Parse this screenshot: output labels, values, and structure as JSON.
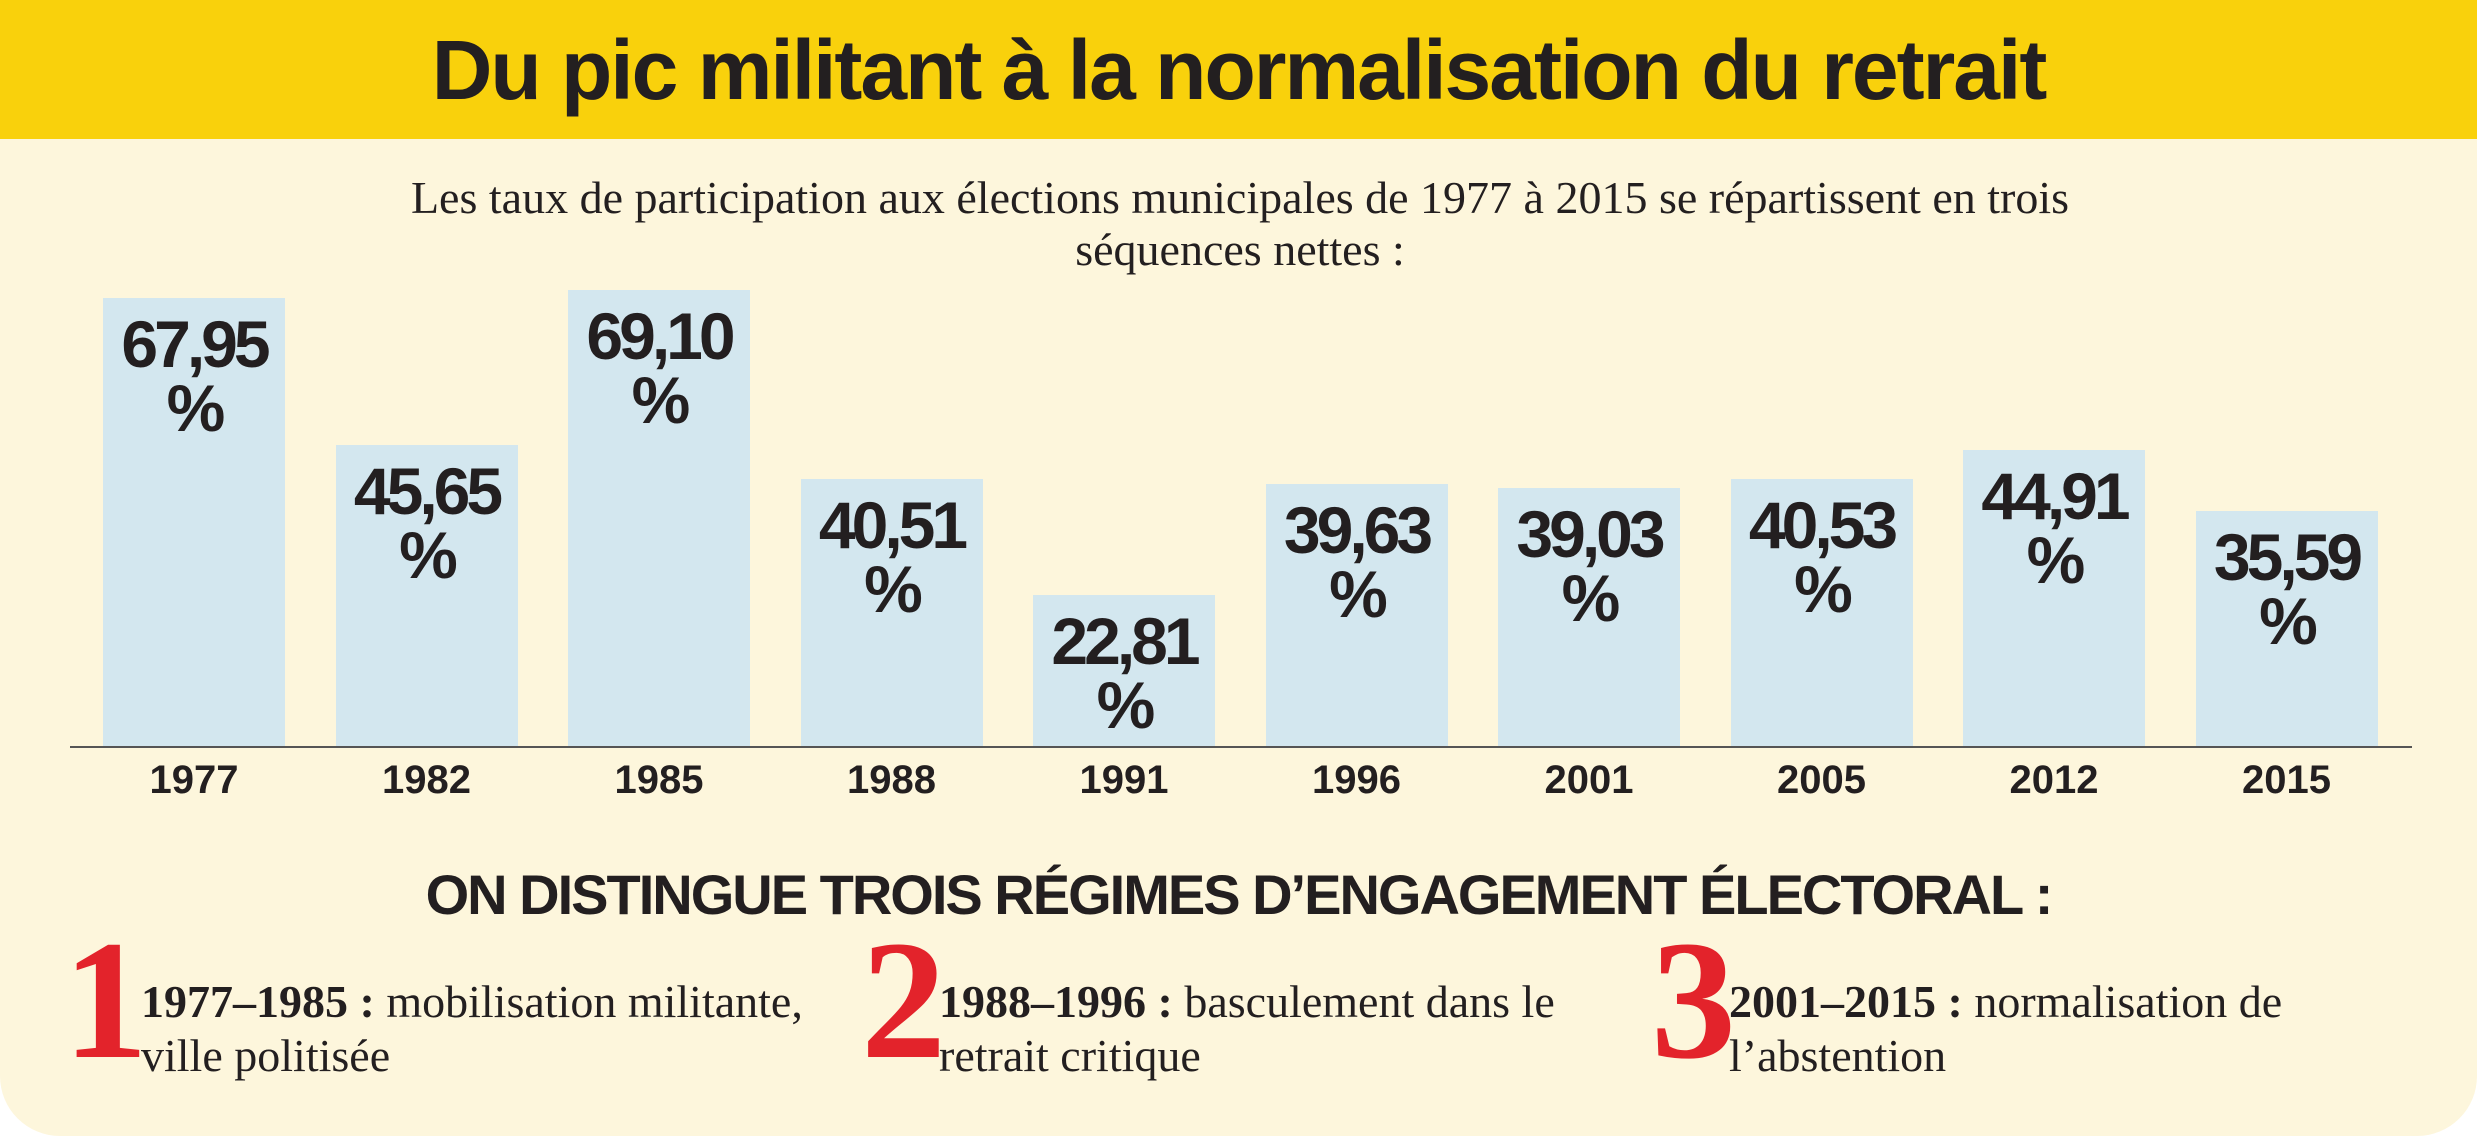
{
  "chart_data": {
    "type": "bar",
    "title": "Du pic militant à la normalisation du retrait",
    "subtitle": "Les taux de participation aux élections municipales de 1977 à 2015 se répartissent en trois séquences nettes :",
    "categories": [
      "1977",
      "1982",
      "1985",
      "1988",
      "1991",
      "1996",
      "2001",
      "2005",
      "2012",
      "2015"
    ],
    "values": [
      67.95,
      45.65,
      69.1,
      40.51,
      22.81,
      39.63,
      39.03,
      40.53,
      44.91,
      35.59
    ],
    "value_labels": [
      "67,95 %",
      "45,65 %",
      "69,10 %",
      "40,51 %",
      "22,81 %",
      "39,63 %",
      "39,03 %",
      "40,53 %",
      "44,91 %",
      "35,59 %"
    ],
    "color": "#d3e7ef"
  },
  "regimes": {
    "heading": "ON DISTINGUE TROIS RÉGIMES D’ENGAGEMENT ÉLECTORAL :",
    "items": [
      {
        "number": "1",
        "period": "1977–1985 :",
        "text": "mobilisation militante, ville politisée"
      },
      {
        "number": "2",
        "period": "1988–1996 :",
        "text": "basculement dans le retrait critique"
      },
      {
        "number": "3",
        "period": "2001–2015 :",
        "text": "normalisation de l’abstention"
      }
    ]
  }
}
